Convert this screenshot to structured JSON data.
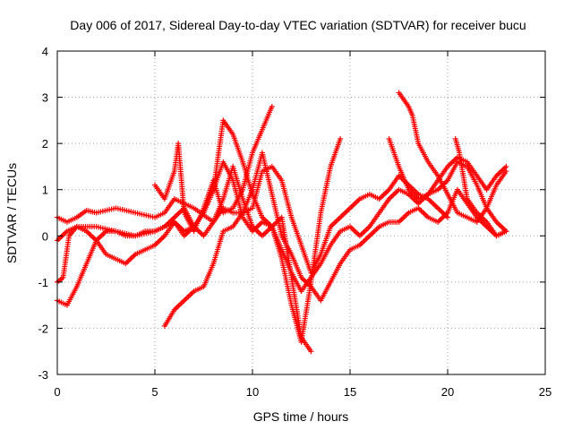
{
  "chart_data": {
    "type": "scatter",
    "title": "Day 006 of 2017, Sidereal Day-to-day VTEC variation (SDTVAR) for receiver bucu",
    "xlabel": "GPS time / hours",
    "ylabel": "SDTVAR / TECUs",
    "xlim": [
      0,
      25
    ],
    "ylim": [
      -3,
      4
    ],
    "xticks": [
      "0",
      "5",
      "10",
      "15",
      "20",
      "25"
    ],
    "yticks": [
      "-3",
      "-2",
      "-1",
      "0",
      "1",
      "2",
      "3",
      "4"
    ],
    "grid": true,
    "marker": "+",
    "marker_color": "#ff0000",
    "series": [
      {
        "x": [
          0,
          0.5,
          1,
          1.5,
          2,
          3,
          4,
          5,
          5.5,
          6,
          7,
          8,
          8.5,
          9,
          9.5,
          10,
          10.5,
          11,
          11.5,
          12,
          12.5,
          13,
          13.5,
          14,
          14.5,
          15,
          15.5,
          16,
          16.5,
          17,
          17.5,
          18,
          18.5,
          19,
          19.5,
          20
        ],
        "y": [
          0.4,
          0.3,
          0.4,
          0.55,
          0.5,
          0.6,
          0.5,
          0.4,
          0.5,
          0.8,
          0.6,
          0.3,
          0.6,
          0.5,
          0.5,
          0.6,
          1.4,
          1.5,
          1.2,
          0.4,
          -0.2,
          -0.8,
          -0.4,
          0.2,
          0.4,
          0.6,
          0.8,
          0.9,
          0.8,
          1.0,
          1.3,
          1.1,
          0.9,
          0.8,
          0.6,
          0.4
        ]
      },
      {
        "x": [
          0,
          0.5,
          1,
          2,
          3,
          4,
          5,
          5.5,
          6,
          6.5,
          7,
          7.5,
          8,
          8.5,
          9,
          9.5,
          10,
          10.5,
          11,
          11.5,
          12,
          12.5,
          13,
          13.5,
          14,
          14.5,
          15,
          15.5,
          16,
          16.5,
          17,
          17.5,
          18,
          18.5,
          19,
          19.5,
          20,
          20.5,
          21,
          21.5,
          22,
          22.5,
          23
        ],
        "y": [
          -0.1,
          0.1,
          0.2,
          0.2,
          0.1,
          0.0,
          0.1,
          0.2,
          0.3,
          0.1,
          0.2,
          0.5,
          1.0,
          1.6,
          1.2,
          0.4,
          0.1,
          0.3,
          0.2,
          -0.3,
          -0.8,
          -1.2,
          -0.9,
          -0.6,
          -0.2,
          0.1,
          0.2,
          0.0,
          0.2,
          0.5,
          0.8,
          1.0,
          0.9,
          0.7,
          0.9,
          1.2,
          1.5,
          1.7,
          1.6,
          1.3,
          1.0,
          1.3,
          1.5
        ]
      },
      {
        "x": [
          0,
          0.5,
          1,
          1.5,
          2,
          2.5,
          3,
          3.5,
          4,
          4.5,
          5,
          5.5,
          6,
          6.5,
          7,
          7.5,
          8,
          8.5,
          9,
          9.5,
          10,
          10.5,
          11,
          11.5,
          12,
          12.5,
          13
        ],
        "y": [
          -1.4,
          -1.5,
          -1.1,
          -0.6,
          -0.1,
          0.1,
          0.1,
          0.0,
          0.0,
          0.1,
          0.1,
          0.2,
          0.4,
          0.6,
          0.2,
          0.0,
          0.3,
          0.8,
          1.5,
          0.8,
          0.2,
          0.0,
          0.2,
          0.4,
          -0.9,
          -2.2,
          -2.5
        ]
      },
      {
        "x": [
          0,
          0.3,
          0.6,
          1,
          1.5,
          2,
          2.5,
          3,
          3.5,
          4,
          4.5,
          5,
          5.5,
          6,
          6.5,
          7,
          7.5,
          8,
          8.5,
          9,
          9.5,
          10,
          10.5,
          11,
          11.5,
          12,
          12.5,
          13,
          13.5,
          14,
          14.5
        ],
        "y": [
          -1.0,
          -0.9,
          0.0,
          0.2,
          0.1,
          -0.1,
          -0.4,
          -0.5,
          -0.6,
          -0.4,
          -0.3,
          -0.2,
          0.0,
          0.3,
          0.0,
          0.2,
          0.5,
          1.0,
          2.5,
          2.2,
          1.6,
          0.9,
          0.4,
          0.2,
          -0.5,
          -1.5,
          -2.3,
          -1.0,
          0.5,
          1.5,
          2.1
        ]
      },
      {
        "x": [
          5.5,
          6,
          6.5,
          7,
          7.5,
          8,
          8.5,
          9,
          9.5,
          10,
          10.5,
          11,
          11.5,
          12,
          12.5,
          13,
          13.5,
          14,
          14.5,
          15,
          15.5,
          16,
          16.5,
          17,
          17.5,
          18,
          18.5,
          19,
          19.5,
          20,
          20.5,
          21,
          21.5,
          22,
          22.5,
          23
        ],
        "y": [
          -1.95,
          -1.6,
          -1.4,
          -1.2,
          -1.1,
          -0.6,
          0.1,
          0.2,
          0.5,
          1.0,
          1.8,
          0.9,
          0.0,
          -0.4,
          -0.9,
          -1.1,
          -1.4,
          -1.0,
          -0.6,
          -0.3,
          -0.2,
          0.0,
          0.2,
          0.3,
          0.3,
          0.5,
          0.6,
          0.4,
          0.3,
          0.5,
          1.0,
          0.7,
          0.4,
          0.2,
          0.0,
          0.1
        ]
      },
      {
        "x": [
          5,
          5.5,
          6,
          6.2,
          6.5,
          7,
          7.5,
          8,
          8.5,
          9,
          9.5,
          10,
          10.5,
          11
        ],
        "y": [
          1.1,
          0.8,
          1.4,
          2.0,
          0.5,
          0.1,
          0.6,
          1.2,
          0.5,
          0.6,
          1.0,
          1.8,
          2.3,
          2.8
        ]
      },
      {
        "x": [
          17,
          17.5,
          18,
          18.5,
          19,
          19.5,
          20,
          20.5,
          21,
          21.5,
          22,
          22.5,
          23
        ],
        "y": [
          2.1,
          1.5,
          1.0,
          0.8,
          0.9,
          1.0,
          1.2,
          1.6,
          1.5,
          1.1,
          0.6,
          0.3,
          0.1
        ]
      },
      {
        "x": [
          17.5,
          18,
          18.2,
          18.5,
          19,
          19.5,
          20,
          20.5,
          21,
          21.5,
          22,
          22.5,
          23
        ],
        "y": [
          3.1,
          2.8,
          2.6,
          2.0,
          1.6,
          1.3,
          0.9,
          0.5,
          0.4,
          0.3,
          0.6,
          1.1,
          1.4
        ]
      },
      {
        "x": [
          20.4,
          20.6,
          20.8,
          21,
          21.5,
          22,
          22.5,
          23
        ],
        "y": [
          2.1,
          1.8,
          1.3,
          0.8,
          0.5,
          0.3,
          0.0,
          0.1
        ]
      }
    ]
  }
}
